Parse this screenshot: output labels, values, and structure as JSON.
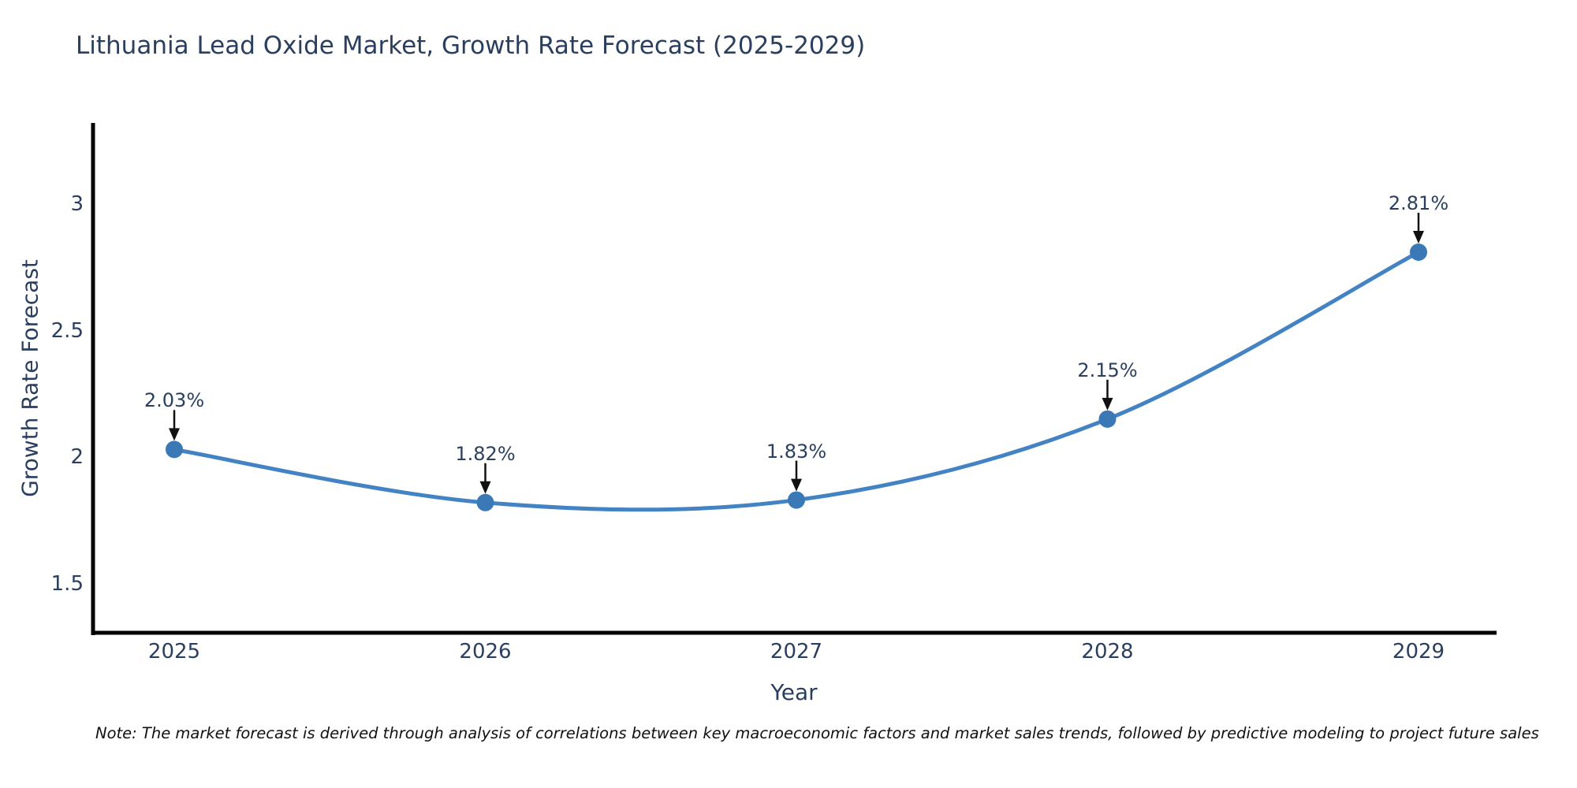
{
  "title": "Lithuania Lead Oxide Market, Growth Rate Forecast (2025-2029)",
  "footnote": "Note: The market forecast is derived through analysis of correlations between key macroeconomic factors and market sales trends, followed by predictive modeling to project future sales",
  "chart_data": {
    "type": "line",
    "title": "Lithuania Lead Oxide Market, Growth Rate Forecast (2025-2029)",
    "xlabel": "Year",
    "ylabel": "Growth Rate Forecast",
    "x": [
      2025,
      2026,
      2027,
      2028,
      2029
    ],
    "values": [
      2.03,
      1.82,
      1.83,
      2.15,
      2.81
    ],
    "point_labels": [
      "2.03%",
      "1.82%",
      "1.83%",
      "2.15%",
      "2.81%"
    ],
    "x_ticks": [
      "2025",
      "2026",
      "2027",
      "2028",
      "2029"
    ],
    "y_ticks": [
      "1.5",
      "2",
      "2.5",
      "3"
    ],
    "ylim": [
      1.3,
      3.33
    ],
    "xlim": [
      2024.74,
      2029.27
    ],
    "grid": false,
    "legend": "none",
    "line_shape": "spline",
    "colors": {
      "line": "#4383c4",
      "marker": "#3a78b6",
      "axis": "#000000",
      "text": "#2a3f5f",
      "annotation_arrow": "#111111"
    }
  }
}
